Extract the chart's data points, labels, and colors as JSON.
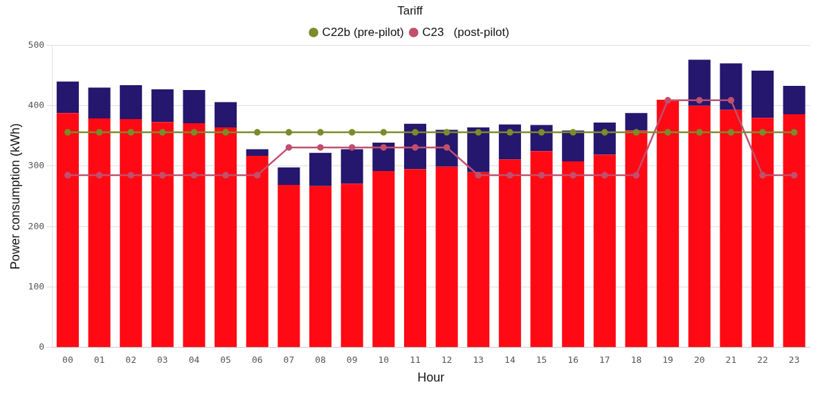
{
  "chart_data": {
    "type": "bar",
    "stacked": true,
    "xlabel": "Hour",
    "ylabel": "Power consumption (kWh)",
    "legend_title": "Tariff",
    "legend": "top",
    "grid": "y",
    "marker": "circle",
    "line_style": "solid",
    "categories": [
      "00",
      "01",
      "02",
      "03",
      "04",
      "05",
      "06",
      "07",
      "08",
      "09",
      "10",
      "11",
      "12",
      "13",
      "14",
      "15",
      "16",
      "17",
      "18",
      "19",
      "20",
      "21",
      "22",
      "23"
    ],
    "ylim": [
      0,
      500
    ],
    "yticks": [
      0,
      100,
      200,
      300,
      400,
      500
    ],
    "series": [
      {
        "color": "#ff0a14",
        "values": [
          388,
          379,
          378,
          373,
          371,
          364,
          317,
          269,
          267,
          271,
          292,
          295,
          299,
          290,
          311,
          325,
          308,
          319,
          359,
          410,
          400,
          393,
          380,
          386
        ]
      },
      {
        "color": "#25166e",
        "values": [
          52,
          51,
          56,
          54,
          55,
          42,
          11,
          29,
          55,
          57,
          47,
          75,
          61,
          74,
          58,
          43,
          51,
          53,
          29,
          0,
          76,
          77,
          78,
          47
        ]
      },
      {
        "type": "line",
        "name": "C22b (pre-pilot)",
        "color": "#7a8c2a",
        "values": [
          356,
          356,
          356,
          356,
          356,
          356,
          356,
          356,
          356,
          356,
          356,
          356,
          356,
          356,
          356,
          356,
          356,
          356,
          356,
          356,
          356,
          356,
          356,
          356
        ]
      },
      {
        "type": "line",
        "name": "C23   (post-pilot)",
        "color": "#c0506e",
        "values": [
          285,
          285,
          285,
          285,
          285,
          285,
          285,
          331,
          331,
          331,
          331,
          331,
          331,
          285,
          285,
          285,
          285,
          285,
          285,
          409,
          409,
          409,
          285,
          285
        ]
      }
    ]
  }
}
